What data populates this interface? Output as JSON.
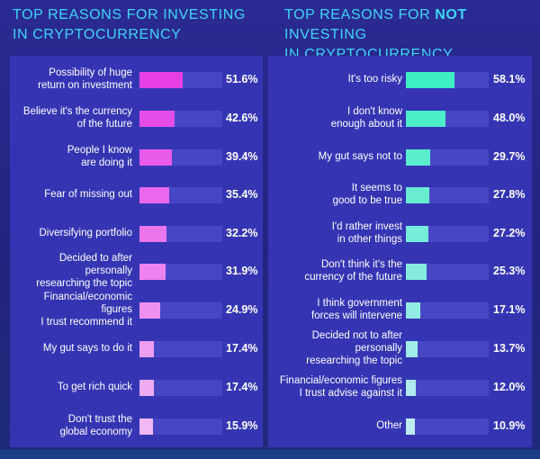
{
  "colors": {
    "left_bar_top": "#e63fe6",
    "left_bar_bottom": "#f0b9f4",
    "right_bar_top": "#3eeec4",
    "right_bar_bottom": "#bdebf2",
    "title": "#3fd6f4"
  },
  "chart_data": [
    {
      "type": "bar",
      "orientation": "horizontal",
      "title": "TOP REASONS FOR INVESTING IN CRYPTOCURRENCY",
      "unit": "%",
      "categories": [
        "Possibility of huge return on investment",
        "Believe it's the currency of the future",
        "People I know are doing it",
        "Fear of missing out",
        "Diversifying portfolio",
        "Decided to after personally researching the topic",
        "Financial/economic figures I trust recommend it",
        "My gut says to do it",
        "To get rich quick",
        "Don't trust the global economy"
      ],
      "labels": [
        [
          "Possibility of huge",
          "return on investment"
        ],
        [
          "Believe it's the currency",
          "of the future"
        ],
        [
          "People I know",
          "are doing it"
        ],
        [
          "Fear of missing out"
        ],
        [
          "Diversifying portfolio"
        ],
        [
          "Decided to after personally",
          "researching the topic"
        ],
        [
          "Financial/economic figures",
          "I trust recommend it"
        ],
        [
          "My gut says to do it"
        ],
        [
          "To get rich quick"
        ],
        [
          "Don't trust the",
          "global economy"
        ]
      ],
      "values": [
        51.6,
        42.6,
        39.4,
        35.4,
        32.2,
        31.9,
        24.9,
        17.4,
        17.4,
        15.9
      ],
      "value_labels": [
        "51.6%",
        "42.6%",
        "39.4%",
        "35.4%",
        "32.2%",
        "31.9%",
        "24.9%",
        "17.4%",
        "17.4%",
        "15.9%"
      ],
      "xlim": [
        0,
        100
      ]
    },
    {
      "type": "bar",
      "orientation": "horizontal",
      "title": "TOP REASONS FOR NOT INVESTING IN CRYPTOCURRENCY",
      "unit": "%",
      "categories": [
        "It's too risky",
        "I don't know enough about it",
        "My gut says not to",
        "It seems to good to be true",
        "I'd rather invest in other things",
        "Don't think it's the currency of the future",
        "I think government forces will intervene",
        "Decided not to after personally researching the topic",
        "Financial/economic figures I trust advise against it",
        "Other"
      ],
      "labels": [
        [
          "It's too risky"
        ],
        [
          "I don't know",
          "enough about it"
        ],
        [
          "My gut says not to"
        ],
        [
          "It seems to",
          "good to be true"
        ],
        [
          "I'd rather invest",
          "in other things"
        ],
        [
          "Don't think it's the",
          "currency of the future"
        ],
        [
          "I think government",
          "forces will intervene"
        ],
        [
          "Decided not to after personally",
          "researching the topic"
        ],
        [
          "Financial/economic figures",
          "I trust advise against it"
        ],
        [
          "Other"
        ]
      ],
      "values": [
        58.1,
        48.0,
        29.7,
        27.8,
        27.2,
        25.3,
        17.1,
        13.7,
        12.0,
        10.9
      ],
      "value_labels": [
        "58.1%",
        "48.0%",
        "29.7%",
        "27.8%",
        "27.2%",
        "25.3%",
        "17.1%",
        "13.7%",
        "12.0%",
        "10.9%"
      ],
      "xlim": [
        0,
        100
      ]
    }
  ],
  "titles": {
    "left_line1": "TOP REASONS FOR INVESTING",
    "left_line2": "IN CRYPTOCURRENCY",
    "right_pre": "TOP REASONS FOR ",
    "right_emph": "NOT",
    "right_post": " INVESTING",
    "right_line2": "IN CRYPTOCURRENCY"
  }
}
